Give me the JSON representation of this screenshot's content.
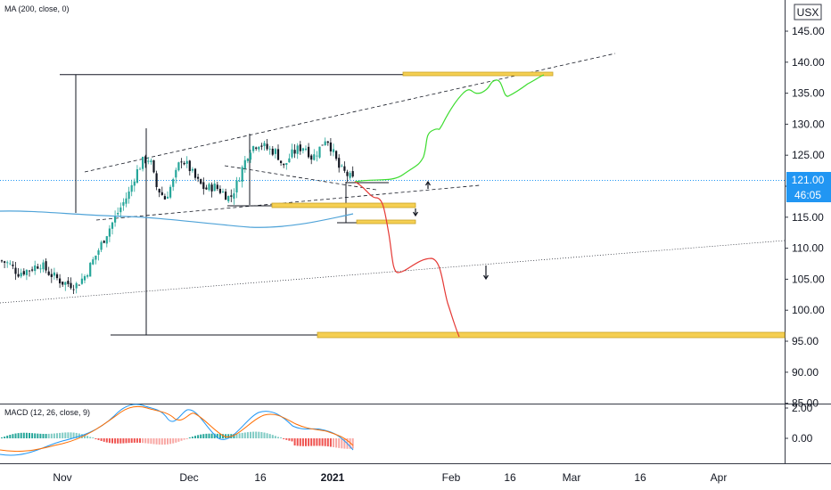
{
  "chart_data": {
    "type": "candlestick",
    "currency": "USX",
    "indicators": {
      "ma_label": "MA (200, close, 0)",
      "macd_label": "MACD (12, 26, close, 9)"
    },
    "price_axis": {
      "ticks": [
        "145.00",
        "140.00",
        "135.00",
        "130.00",
        "125.00",
        "120.00",
        "115.00",
        "110.00",
        "105.00",
        "100.00",
        "95.00",
        "90.00",
        "85.00"
      ],
      "range": [
        84,
        149
      ]
    },
    "macd_axis": {
      "ticks": [
        "2.00",
        "0.00"
      ]
    },
    "time_axis": {
      "ticks": [
        "Nov",
        "Dec",
        "16",
        "2021",
        "Feb",
        "16",
        "Mar",
        "16",
        "Apr"
      ]
    },
    "last_price": {
      "value": 121.0,
      "label": "121.00",
      "countdown": "46:05"
    },
    "colors": {
      "up": "#26a69a",
      "down": "#131722",
      "ma": "#4fa3d8",
      "bull_path": "#3ddc2f",
      "bear_path": "#e53935",
      "zone": "#f5cf52",
      "price_line": "#2196f3",
      "macd_line": "#2196f3",
      "signal_line": "#ff6d00"
    },
    "key_levels": {
      "top_target": 138,
      "bottom_target": 95.8,
      "support_1": 116.5,
      "support_2": 114.1
    }
  }
}
